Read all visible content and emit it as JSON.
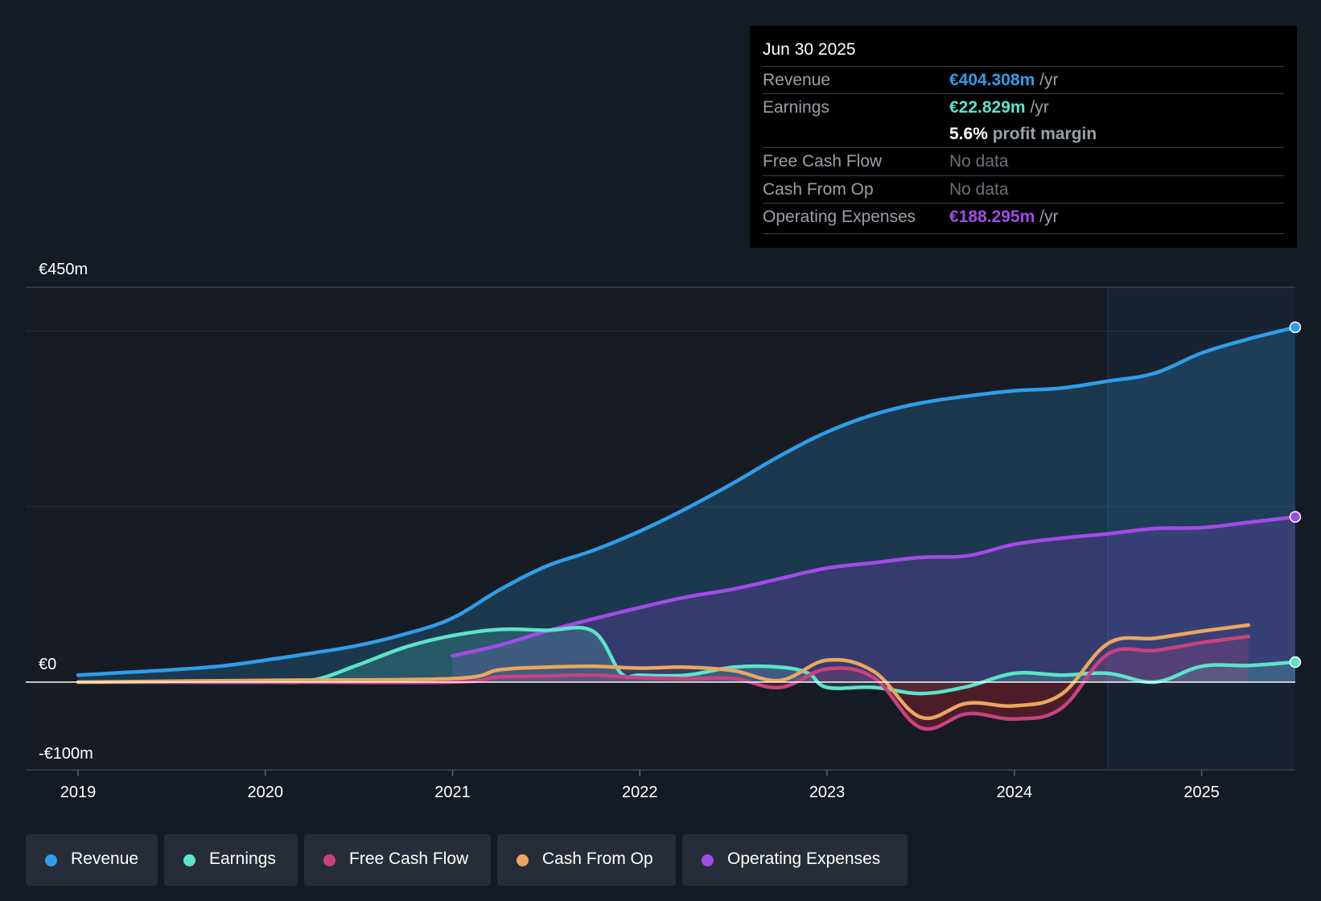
{
  "tooltip": {
    "date": "Jun 30 2025",
    "revenue_label": "Revenue",
    "revenue_value": "€404.308m",
    "per_year": "/yr",
    "earnings_label": "Earnings",
    "earnings_value": "€22.829m",
    "margin_value": "5.6%",
    "margin_label": "profit margin",
    "fcf_label": "Free Cash Flow",
    "fcf_value": "No data",
    "cfo_label": "Cash From Op",
    "cfo_value": "No data",
    "opex_label": "Operating Expenses",
    "opex_value": "€188.295m"
  },
  "legend": [
    {
      "label": "Revenue",
      "color": "#2f9ee8"
    },
    {
      "label": "Earnings",
      "color": "#5de3cb"
    },
    {
      "label": "Free Cash Flow",
      "color": "#c9427d"
    },
    {
      "label": "Cash From Op",
      "color": "#e9a75f"
    },
    {
      "label": "Operating Expenses",
      "color": "#a24ce8"
    }
  ],
  "chart_data": {
    "type": "line",
    "title": "",
    "xlabel": "",
    "ylabel": "",
    "ylim": [
      -100,
      450
    ],
    "xlim": [
      2019,
      2025.5
    ],
    "y_tick_labels": [
      {
        "value": 450,
        "label": "€450m"
      },
      {
        "value": 0,
        "label": "€0"
      },
      {
        "value": -100,
        "label": "-€100m"
      }
    ],
    "x_ticks": [
      2019,
      2020,
      2021,
      2022,
      2023,
      2024,
      2025
    ],
    "x_tick_labels": [
      "2019",
      "2020",
      "2021",
      "2022",
      "2023",
      "2024",
      "2025"
    ],
    "highlight_start": 2024.5,
    "series": [
      {
        "name": "Revenue",
        "color": "#2f9ee8",
        "fill": true,
        "x": [
          2019,
          2019.25,
          2019.5,
          2019.75,
          2020,
          2020.25,
          2020.5,
          2020.75,
          2021,
          2021.25,
          2021.5,
          2021.75,
          2022,
          2022.25,
          2022.5,
          2022.75,
          2023,
          2023.25,
          2023.5,
          2023.75,
          2024,
          2024.25,
          2024.5,
          2024.75,
          2025,
          2025.25,
          2025.5
        ],
        "values": [
          8,
          11,
          14,
          18,
          25,
          33,
          42,
          55,
          73,
          105,
          132,
          150,
          172,
          198,
          227,
          258,
          285,
          305,
          318,
          326,
          332,
          335,
          343,
          352,
          375,
          391,
          404.3
        ]
      },
      {
        "name": "Operating Expenses",
        "color": "#a24ce8",
        "fill": true,
        "x": [
          2021,
          2021.25,
          2021.5,
          2021.75,
          2022,
          2022.25,
          2022.5,
          2022.75,
          2023,
          2023.25,
          2023.5,
          2023.75,
          2024,
          2024.25,
          2024.5,
          2024.75,
          2025,
          2025.25,
          2025.5
        ],
        "values": [
          30,
          42,
          58,
          72,
          85,
          97,
          106,
          118,
          130,
          136,
          142,
          144,
          157,
          164,
          169,
          175,
          176,
          182,
          188.3
        ]
      },
      {
        "name": "Earnings",
        "color": "#5de3cb",
        "fill": true,
        "x": [
          2019,
          2019.5,
          2020,
          2020.25,
          2020.5,
          2020.75,
          2021,
          2021.25,
          2021.5,
          2021.75,
          2021.9,
          2022,
          2022.25,
          2022.5,
          2022.75,
          2022.9,
          2023,
          2023.25,
          2023.5,
          2023.75,
          2024,
          2024.25,
          2024.5,
          2024.75,
          2025,
          2025.25,
          2025.5
        ],
        "values": [
          0,
          0,
          0,
          2,
          20,
          40,
          53,
          60,
          59,
          58,
          10,
          8,
          8,
          17,
          17,
          10,
          -6,
          -6,
          -13,
          -5,
          10,
          8,
          10,
          0,
          18,
          19,
          22.8
        ]
      },
      {
        "name": "Free Cash Flow",
        "color": "#c9427d",
        "fill": true,
        "x": [
          2019,
          2020,
          2021,
          2021.25,
          2021.5,
          2021.75,
          2022,
          2022.25,
          2022.5,
          2022.75,
          2023,
          2023.25,
          2023.5,
          2023.75,
          2024,
          2024.25,
          2024.5,
          2024.75,
          2025,
          2025.25
        ],
        "values": [
          0,
          0,
          0,
          6,
          7,
          8,
          5,
          4,
          4,
          -6,
          15,
          5,
          -52,
          -36,
          -42,
          -30,
          32,
          36,
          45,
          52
        ]
      },
      {
        "name": "Cash From Op",
        "color": "#e9a75f",
        "fill": false,
        "x": [
          2019,
          2020,
          2021,
          2021.25,
          2021.5,
          2021.75,
          2022,
          2022.25,
          2022.5,
          2022.75,
          2023,
          2023.25,
          2023.5,
          2023.75,
          2024,
          2024.25,
          2024.5,
          2024.75,
          2025,
          2025.25
        ],
        "values": [
          0,
          2,
          4,
          14,
          17,
          18,
          16,
          17,
          13,
          2,
          25,
          12,
          -40,
          -24,
          -27,
          -14,
          44,
          50,
          58,
          65
        ]
      }
    ]
  }
}
